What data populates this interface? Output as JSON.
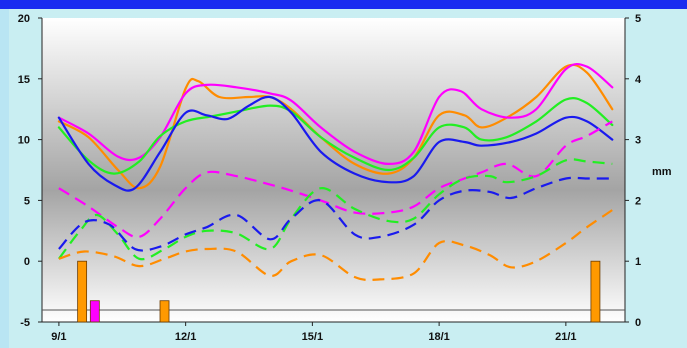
{
  "chart_data": {
    "type": "line",
    "title": "",
    "x_axis": {
      "ticks": [
        "9/1",
        "12/1",
        "15/1",
        "18/1",
        "21/1"
      ],
      "range_days": [
        8.6,
        22.4
      ]
    },
    "y_left": {
      "ticks": [
        "20",
        "15",
        "10",
        "5",
        "0",
        "-5"
      ],
      "range": [
        -5,
        20
      ]
    },
    "y_right": {
      "label": "mm",
      "ticks": [
        "5",
        "4",
        "3",
        "2",
        "1",
        "0"
      ],
      "range": [
        0,
        5
      ]
    },
    "grid": "horizontal band gradient",
    "series": [
      {
        "color": "#ff8c00",
        "style": "solid",
        "points": [
          [
            9,
            11.5
          ],
          [
            9.7,
            10.2
          ],
          [
            10.4,
            7.5
          ],
          [
            10.9,
            6.0
          ],
          [
            11.4,
            7.8
          ],
          [
            12.0,
            14.2
          ],
          [
            12.3,
            14.8
          ],
          [
            12.8,
            13.5
          ],
          [
            13.5,
            13.5
          ],
          [
            14,
            13.5
          ],
          [
            14.5,
            12.5
          ],
          [
            15.2,
            10.2
          ],
          [
            16.0,
            8.0
          ],
          [
            16.8,
            7.2
          ],
          [
            17.4,
            8.5
          ],
          [
            18,
            12.0
          ],
          [
            18.6,
            12.0
          ],
          [
            19,
            11.0
          ],
          [
            19.6,
            11.8
          ],
          [
            20.3,
            13.5
          ],
          [
            21,
            16.0
          ],
          [
            21.5,
            15.5
          ],
          [
            22.1,
            12.5
          ]
        ]
      },
      {
        "color": "#ff00ff",
        "style": "solid",
        "points": [
          [
            9,
            11.8
          ],
          [
            9.7,
            10.5
          ],
          [
            10.4,
            8.6
          ],
          [
            10.9,
            8.5
          ],
          [
            11.4,
            10.2
          ],
          [
            12.0,
            13.8
          ],
          [
            12.5,
            14.5
          ],
          [
            13.2,
            14.3
          ],
          [
            14,
            13.8
          ],
          [
            14.5,
            13.2
          ],
          [
            15.2,
            11.0
          ],
          [
            16,
            9.0
          ],
          [
            16.8,
            8.0
          ],
          [
            17.4,
            9.0
          ],
          [
            18,
            13.5
          ],
          [
            18.5,
            14.0
          ],
          [
            19,
            12.5
          ],
          [
            19.7,
            11.8
          ],
          [
            20.3,
            12.5
          ],
          [
            21,
            15.8
          ],
          [
            21.5,
            16.0
          ],
          [
            22.1,
            14.3
          ]
        ]
      },
      {
        "color": "#22ee22",
        "style": "solid",
        "points": [
          [
            9,
            11.0
          ],
          [
            9.7,
            8.3
          ],
          [
            10.3,
            7.2
          ],
          [
            10.9,
            8.2
          ],
          [
            11.4,
            10.3
          ],
          [
            12.0,
            11.5
          ],
          [
            12.6,
            11.9
          ],
          [
            13.2,
            12.3
          ],
          [
            14,
            12.8
          ],
          [
            14.5,
            12.3
          ],
          [
            15.2,
            10.2
          ],
          [
            16,
            8.5
          ],
          [
            16.8,
            7.5
          ],
          [
            17.4,
            8.5
          ],
          [
            18,
            11.0
          ],
          [
            18.6,
            11.0
          ],
          [
            19,
            10.0
          ],
          [
            19.6,
            10.2
          ],
          [
            20.3,
            11.5
          ],
          [
            21,
            13.3
          ],
          [
            21.5,
            13.0
          ],
          [
            22.1,
            11.2
          ]
        ]
      },
      {
        "color": "#1a1aee",
        "style": "solid",
        "points": [
          [
            9,
            11.8
          ],
          [
            9.7,
            8.0
          ],
          [
            10.3,
            6.3
          ],
          [
            10.8,
            6.0
          ],
          [
            11.4,
            9.0
          ],
          [
            12.0,
            12.2
          ],
          [
            12.5,
            12.0
          ],
          [
            13.0,
            11.7
          ],
          [
            13.5,
            12.8
          ],
          [
            14,
            13.5
          ],
          [
            14.5,
            12.2
          ],
          [
            15.2,
            9.0
          ],
          [
            16,
            7.2
          ],
          [
            16.8,
            6.5
          ],
          [
            17.4,
            7.0
          ],
          [
            18,
            9.8
          ],
          [
            18.6,
            9.8
          ],
          [
            19,
            9.5
          ],
          [
            19.7,
            9.8
          ],
          [
            20.3,
            10.5
          ],
          [
            21,
            11.8
          ],
          [
            21.5,
            11.5
          ],
          [
            22.1,
            10.0
          ]
        ]
      },
      {
        "color": "#ff00ff",
        "style": "dashed",
        "points": [
          [
            9,
            6.0
          ],
          [
            9.7,
            4.5
          ],
          [
            10.4,
            2.8
          ],
          [
            10.9,
            2.0
          ],
          [
            11.4,
            3.5
          ],
          [
            12.0,
            6.0
          ],
          [
            12.5,
            7.3
          ],
          [
            13.2,
            7.0
          ],
          [
            14,
            6.3
          ],
          [
            14.5,
            5.8
          ],
          [
            15.2,
            5.0
          ],
          [
            16,
            4.0
          ],
          [
            16.8,
            4.0
          ],
          [
            17.4,
            4.5
          ],
          [
            18,
            6.0
          ],
          [
            18.6,
            6.8
          ],
          [
            19,
            7.3
          ],
          [
            19.6,
            8.0
          ],
          [
            20.3,
            7.0
          ],
          [
            21,
            9.5
          ],
          [
            21.5,
            10.3
          ],
          [
            22.1,
            11.5
          ]
        ]
      },
      {
        "color": "#22ee22",
        "style": "dashed",
        "points": [
          [
            9,
            0.2
          ],
          [
            9.5,
            2.5
          ],
          [
            9.9,
            3.8
          ],
          [
            10.4,
            2.2
          ],
          [
            10.9,
            0.2
          ],
          [
            11.5,
            1.0
          ],
          [
            12.0,
            2.0
          ],
          [
            12.5,
            2.5
          ],
          [
            13.2,
            2.3
          ],
          [
            14,
            1.0
          ],
          [
            14.5,
            3.5
          ],
          [
            15.2,
            6.0
          ],
          [
            16,
            4.3
          ],
          [
            16.8,
            3.3
          ],
          [
            17.4,
            3.5
          ],
          [
            18,
            5.5
          ],
          [
            18.6,
            6.8
          ],
          [
            19.2,
            7.0
          ],
          [
            19.6,
            6.5
          ],
          [
            20.3,
            7.0
          ],
          [
            21,
            8.3
          ],
          [
            21.5,
            8.2
          ],
          [
            22.1,
            8.0
          ]
        ]
      },
      {
        "color": "#1a1aee",
        "style": "dashed",
        "points": [
          [
            9,
            1.0
          ],
          [
            9.6,
            3.2
          ],
          [
            10.2,
            3.0
          ],
          [
            10.8,
            1.0
          ],
          [
            11.4,
            1.2
          ],
          [
            12.0,
            2.2
          ],
          [
            12.5,
            2.8
          ],
          [
            13.2,
            3.8
          ],
          [
            14,
            1.8
          ],
          [
            14.5,
            3.5
          ],
          [
            15.2,
            5.0
          ],
          [
            16,
            2.2
          ],
          [
            16.6,
            2.0
          ],
          [
            17.4,
            3.0
          ],
          [
            18,
            5.0
          ],
          [
            18.6,
            5.8
          ],
          [
            19.2,
            5.7
          ],
          [
            19.7,
            5.2
          ],
          [
            20.3,
            6.0
          ],
          [
            21,
            6.8
          ],
          [
            21.5,
            6.8
          ],
          [
            22.1,
            6.8
          ]
        ]
      },
      {
        "color": "#ff8c00",
        "style": "dashed",
        "points": [
          [
            9,
            0.2
          ],
          [
            9.6,
            0.8
          ],
          [
            10.3,
            0.4
          ],
          [
            10.9,
            -0.4
          ],
          [
            11.5,
            0.2
          ],
          [
            12.0,
            0.8
          ],
          [
            12.5,
            1.0
          ],
          [
            13.2,
            0.8
          ],
          [
            14,
            -1.2
          ],
          [
            14.5,
            0.0
          ],
          [
            15.2,
            0.5
          ],
          [
            16,
            -1.3
          ],
          [
            16.6,
            -1.5
          ],
          [
            17.4,
            -1.0
          ],
          [
            18,
            1.5
          ],
          [
            18.6,
            1.3
          ],
          [
            19.2,
            0.5
          ],
          [
            19.7,
            -0.5
          ],
          [
            20.3,
            0.0
          ],
          [
            21,
            1.5
          ],
          [
            21.5,
            2.8
          ],
          [
            22.1,
            4.2
          ]
        ]
      }
    ],
    "bars": [
      {
        "x": 9.55,
        "value_mm": 1.0,
        "color": "#ff9900"
      },
      {
        "x": 9.85,
        "value_mm": 0.35,
        "color": "#ff00ff"
      },
      {
        "x": 11.5,
        "value_mm": 0.35,
        "color": "#ff9900"
      },
      {
        "x": 21.7,
        "value_mm": 1.0,
        "color": "#ff9900"
      }
    ]
  }
}
